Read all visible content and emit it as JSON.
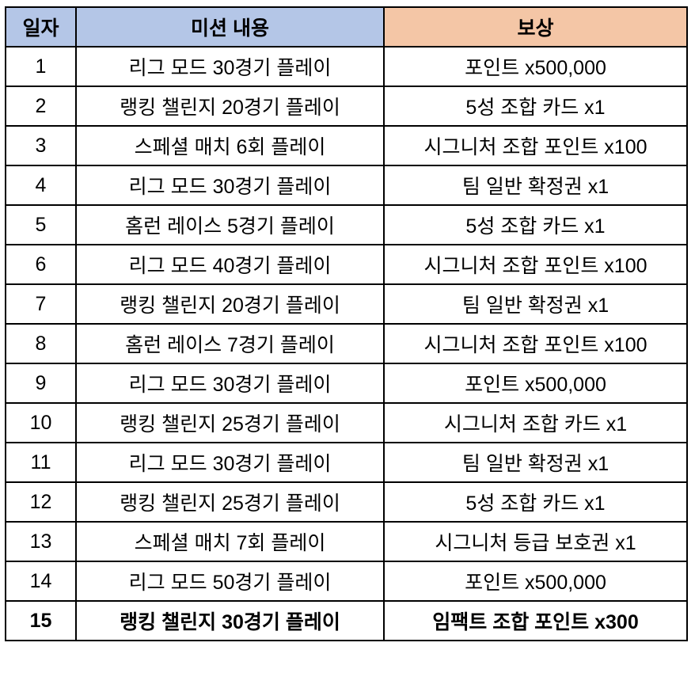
{
  "header": {
    "day": "일자",
    "mission": "미션 내용",
    "reward": "보상"
  },
  "colors": {
    "header_left": "#b4c6e7",
    "header_right": "#f4c6a6"
  },
  "rows": [
    {
      "day": "1",
      "mission": "리그 모드 30경기 플레이",
      "reward": "포인트 x500,000"
    },
    {
      "day": "2",
      "mission": "랭킹 챌린지 20경기 플레이",
      "reward": "5성 조합 카드 x1"
    },
    {
      "day": "3",
      "mission": "스페셜 매치 6회 플레이",
      "reward": "시그니처 조합 포인트 x100"
    },
    {
      "day": "4",
      "mission": "리그 모드 30경기 플레이",
      "reward": "팀 일반 확정권 x1"
    },
    {
      "day": "5",
      "mission": "홈런 레이스 5경기 플레이",
      "reward": "5성 조합 카드 x1"
    },
    {
      "day": "6",
      "mission": "리그 모드 40경기 플레이",
      "reward": "시그니처 조합 포인트 x100"
    },
    {
      "day": "7",
      "mission": "랭킹 챌린지 20경기 플레이",
      "reward": "팀 일반 확정권 x1"
    },
    {
      "day": "8",
      "mission": "홈런 레이스 7경기 플레이",
      "reward": "시그니처 조합 포인트 x100"
    },
    {
      "day": "9",
      "mission": "리그 모드 30경기 플레이",
      "reward": "포인트 x500,000"
    },
    {
      "day": "10",
      "mission": "랭킹 챌린지 25경기 플레이",
      "reward": "시그니처 조합 카드 x1"
    },
    {
      "day": "11",
      "mission": "리그 모드 30경기 플레이",
      "reward": "팀 일반 확정권 x1"
    },
    {
      "day": "12",
      "mission": "랭킹 챌린지 25경기 플레이",
      "reward": "5성 조합 카드 x1"
    },
    {
      "day": "13",
      "mission": "스페셜 매치 7회 플레이",
      "reward": "시그니처 등급 보호권 x1"
    },
    {
      "day": "14",
      "mission": "리그 모드 50경기 플레이",
      "reward": "포인트 x500,000"
    },
    {
      "day": "15",
      "mission": "랭킹 챌린지 30경기 플레이",
      "reward": "임팩트 조합 포인트 x300",
      "bold": true
    }
  ]
}
